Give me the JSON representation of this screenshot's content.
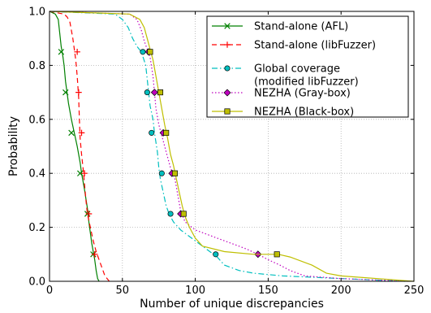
{
  "chart_data": {
    "type": "line",
    "title": "",
    "xlabel": "Number of unique discrepancies",
    "ylabel": "Probability",
    "xlim": [
      0,
      250
    ],
    "ylim": [
      0.0,
      1.0
    ],
    "xticks": [
      "0",
      "50",
      "100",
      "150",
      "200",
      "250"
    ],
    "yticks": [
      "0.0",
      "0.2",
      "0.4",
      "0.6",
      "0.8",
      "1.0"
    ],
    "grid": true,
    "legend_position": "top-right",
    "series": [
      {
        "name": "Stand-alone (AFL)",
        "color": "#008000",
        "line_style": "solid",
        "marker": "x",
        "curve": [
          [
            0,
            1.0
          ],
          [
            4,
            0.99
          ],
          [
            6,
            0.97
          ],
          [
            7,
            0.92
          ],
          [
            8,
            0.87
          ],
          [
            9,
            0.84
          ],
          [
            10,
            0.8
          ],
          [
            11,
            0.74
          ],
          [
            12,
            0.7
          ],
          [
            13,
            0.66
          ],
          [
            15,
            0.6
          ],
          [
            17,
            0.55
          ],
          [
            19,
            0.5
          ],
          [
            21,
            0.44
          ],
          [
            22,
            0.4
          ],
          [
            24,
            0.34
          ],
          [
            26,
            0.27
          ],
          [
            27,
            0.22
          ],
          [
            28,
            0.18
          ],
          [
            29,
            0.14
          ],
          [
            30,
            0.11
          ],
          [
            31,
            0.08
          ],
          [
            32,
            0.04
          ],
          [
            33,
            0.01
          ],
          [
            34,
            0.0
          ]
        ],
        "markers": [
          [
            8,
            0.85
          ],
          [
            11,
            0.7
          ],
          [
            15,
            0.55
          ],
          [
            21,
            0.4
          ],
          [
            26,
            0.25
          ],
          [
            30,
            0.1
          ]
        ]
      },
      {
        "name": "Stand-alone (libFuzzer)",
        "color": "#ff0000",
        "line_style": "dashed",
        "marker": "+",
        "curve": [
          [
            0,
            1.0
          ],
          [
            10,
            0.99
          ],
          [
            12,
            0.98
          ],
          [
            14,
            0.96
          ],
          [
            15,
            0.93
          ],
          [
            16,
            0.9
          ],
          [
            17,
            0.86
          ],
          [
            18,
            0.82
          ],
          [
            19,
            0.76
          ],
          [
            20,
            0.68
          ],
          [
            20.5,
            0.6
          ],
          [
            21,
            0.53
          ],
          [
            22,
            0.47
          ],
          [
            23,
            0.42
          ],
          [
            24,
            0.36
          ],
          [
            25,
            0.3
          ],
          [
            26,
            0.25
          ],
          [
            28,
            0.2
          ],
          [
            30,
            0.15
          ],
          [
            32,
            0.11
          ],
          [
            34,
            0.08
          ],
          [
            36,
            0.05
          ],
          [
            38,
            0.02
          ],
          [
            41,
            0.0
          ]
        ],
        "markers": [
          [
            19,
            0.85
          ],
          [
            20,
            0.7
          ],
          [
            22,
            0.55
          ],
          [
            24,
            0.4
          ],
          [
            27,
            0.25
          ],
          [
            31,
            0.1
          ]
        ]
      },
      {
        "name": "Global coverage\n(modified libFuzzer)",
        "color": "#00bfbf",
        "line_style": "dashdot",
        "marker": "o",
        "curve": [
          [
            0,
            1.0
          ],
          [
            45,
            0.99
          ],
          [
            50,
            0.97
          ],
          [
            54,
            0.94
          ],
          [
            57,
            0.9
          ],
          [
            60,
            0.87
          ],
          [
            63,
            0.85
          ],
          [
            66,
            0.8
          ],
          [
            67,
            0.75
          ],
          [
            68,
            0.7
          ],
          [
            69,
            0.65
          ],
          [
            71,
            0.6
          ],
          [
            72,
            0.55
          ],
          [
            74,
            0.48
          ],
          [
            75,
            0.42
          ],
          [
            76,
            0.38
          ],
          [
            78,
            0.33
          ],
          [
            80,
            0.28
          ],
          [
            82,
            0.25
          ],
          [
            85,
            0.22
          ],
          [
            90,
            0.19
          ],
          [
            100,
            0.15
          ],
          [
            110,
            0.11
          ],
          [
            115,
            0.09
          ],
          [
            120,
            0.06
          ],
          [
            130,
            0.04
          ],
          [
            140,
            0.03
          ],
          [
            160,
            0.02
          ],
          [
            200,
            0.01
          ],
          [
            244,
            0.0
          ]
        ],
        "markers": [
          [
            64,
            0.85
          ],
          [
            67,
            0.7
          ],
          [
            70,
            0.55
          ],
          [
            77,
            0.4
          ],
          [
            83,
            0.25
          ],
          [
            114,
            0.1
          ]
        ]
      },
      {
        "name": "NEZHA (Gray-box)",
        "color": "#bf00bf",
        "line_style": "dotted",
        "marker": "D",
        "curve": [
          [
            0,
            1.0
          ],
          [
            55,
            0.99
          ],
          [
            60,
            0.97
          ],
          [
            63,
            0.93
          ],
          [
            65,
            0.89
          ],
          [
            67,
            0.86
          ],
          [
            69,
            0.83
          ],
          [
            71,
            0.76
          ],
          [
            72,
            0.7
          ],
          [
            73,
            0.64
          ],
          [
            75,
            0.58
          ],
          [
            77,
            0.54
          ],
          [
            80,
            0.48
          ],
          [
            83,
            0.42
          ],
          [
            86,
            0.38
          ],
          [
            88,
            0.32
          ],
          [
            90,
            0.26
          ],
          [
            93,
            0.22
          ],
          [
            100,
            0.19
          ],
          [
            110,
            0.17
          ],
          [
            125,
            0.14
          ],
          [
            135,
            0.12
          ],
          [
            143,
            0.1
          ],
          [
            150,
            0.08
          ],
          [
            158,
            0.06
          ],
          [
            165,
            0.04
          ],
          [
            175,
            0.02
          ],
          [
            200,
            0.01
          ],
          [
            246,
            0.0
          ]
        ],
        "markers": [
          [
            68,
            0.85
          ],
          [
            72,
            0.7
          ],
          [
            78,
            0.55
          ],
          [
            84,
            0.4
          ],
          [
            90,
            0.25
          ],
          [
            143,
            0.1
          ]
        ]
      },
      {
        "name": "NEZHA (Black-box)",
        "color": "#bfbf00",
        "line_style": "solid",
        "marker": "s",
        "curve": [
          [
            0,
            1.0
          ],
          [
            55,
            0.99
          ],
          [
            62,
            0.97
          ],
          [
            65,
            0.94
          ],
          [
            67,
            0.9
          ],
          [
            69,
            0.86
          ],
          [
            71,
            0.82
          ],
          [
            73,
            0.76
          ],
          [
            75,
            0.7
          ],
          [
            77,
            0.64
          ],
          [
            79,
            0.58
          ],
          [
            81,
            0.53
          ],
          [
            83,
            0.47
          ],
          [
            85,
            0.43
          ],
          [
            87,
            0.38
          ],
          [
            89,
            0.33
          ],
          [
            91,
            0.28
          ],
          [
            93,
            0.24
          ],
          [
            96,
            0.2
          ],
          [
            100,
            0.16
          ],
          [
            105,
            0.13
          ],
          [
            120,
            0.11
          ],
          [
            140,
            0.1
          ],
          [
            157,
            0.1
          ],
          [
            165,
            0.09
          ],
          [
            180,
            0.06
          ],
          [
            190,
            0.03
          ],
          [
            200,
            0.02
          ],
          [
            250,
            0.0
          ]
        ],
        "markers": [
          [
            69,
            0.85
          ],
          [
            76,
            0.7
          ],
          [
            80,
            0.55
          ],
          [
            86,
            0.4
          ],
          [
            92,
            0.25
          ],
          [
            156,
            0.1
          ]
        ]
      }
    ]
  }
}
